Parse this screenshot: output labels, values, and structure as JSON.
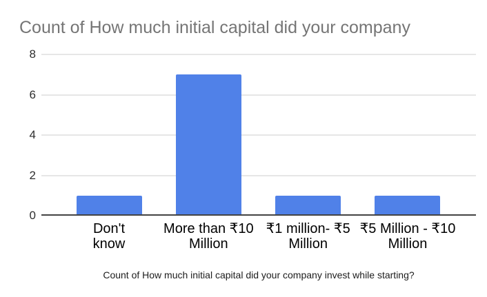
{
  "title": "Count of How much initial capital did your company",
  "chart_data": {
    "type": "bar",
    "title": "Count of How much initial capital did your company",
    "categories": [
      "Don't know",
      "More than ₹10 Million",
      "₹1 million- ₹5 Million",
      "₹5 Million - ₹10 Million"
    ],
    "category_lines": [
      [
        "Don't",
        "know"
      ],
      [
        "More than ₹10",
        "Million"
      ],
      [
        "₹1 million- ₹5",
        "Million"
      ],
      [
        "₹5 Million - ₹10",
        "Million"
      ]
    ],
    "values": [
      1,
      7,
      1,
      1
    ],
    "xlabel": "Count of How much initial capital did your company invest while starting?",
    "ylabel": "",
    "ylim": [
      0,
      8
    ],
    "yticks": [
      0,
      2,
      4,
      6,
      8
    ],
    "grid": true,
    "legend": "none"
  },
  "colors": {
    "bar": "#5081e8",
    "title_text": "#757575",
    "gridline": "#e6e6e6",
    "axis_line": "#424242",
    "tick_text": "#2e2e2e",
    "category_text": "#000000",
    "caption_text": "#1c1c1c"
  }
}
